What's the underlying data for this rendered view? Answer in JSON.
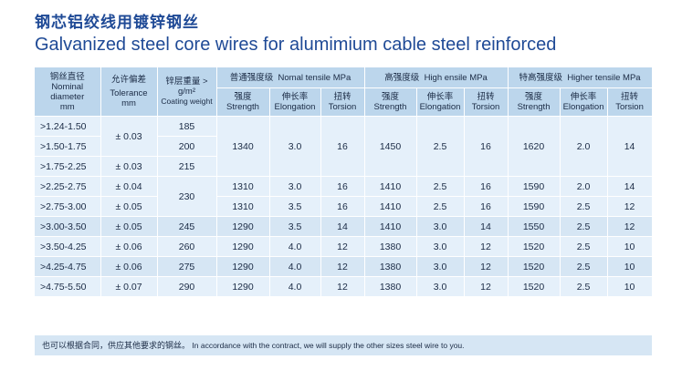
{
  "title": {
    "cn": "钢芯铝绞线用镀锌钢丝",
    "en": "Galvanized steel core wires for alumimium cable steel reinforced"
  },
  "header": {
    "diameter": {
      "cn": "钢丝直径",
      "en1": "Nominal",
      "en2": "diameter",
      "unit": "mm"
    },
    "tolerance": {
      "cn": "允许偏差",
      "en": "Tolerance",
      "unit": "mm"
    },
    "coating": {
      "cn": "锌层重量 >",
      "unit": "g/m²",
      "en": "Coating weight"
    },
    "groups": [
      {
        "cn": "普通强度级",
        "en": "Nomal tensile MPa"
      },
      {
        "cn": "高强度级",
        "en": "High ensile MPa"
      },
      {
        "cn": "特高强度级",
        "en": "Higher tensile MPa"
      }
    ],
    "sub": [
      {
        "cn": "强度",
        "en": "Strength"
      },
      {
        "cn": "伸长率",
        "en": "Elongation"
      },
      {
        "cn": "扭转",
        "en": "Torsion"
      }
    ]
  },
  "rows": [
    {
      "range": ">1.24-1.50",
      "coating": "185"
    },
    {
      "range": ">1.50-1.75",
      "coating": "200"
    },
    {
      "range": ">1.75-2.25",
      "tolerance": "± 0.03",
      "coating": "215"
    },
    {
      "range": ">2.25-2.75",
      "tolerance": "± 0.04",
      "s1": "1310",
      "e1": "3.0",
      "t1": "16",
      "s2": "1410",
      "e2": "2.5",
      "t2": "16",
      "s3": "1590",
      "e3": "2.0",
      "t3": "14"
    },
    {
      "range": ">2.75-3.00",
      "tolerance": "± 0.05",
      "coating": "230",
      "s1": "1310",
      "e1": "3.5",
      "t1": "16",
      "s2": "1410",
      "e2": "2.5",
      "t2": "16",
      "s3": "1590",
      "e3": "2.5",
      "t3": "12"
    },
    {
      "range": ">3.00-3.50",
      "tolerance": "± 0.05",
      "coating": "245",
      "s1": "1290",
      "e1": "3.5",
      "t1": "14",
      "s2": "1410",
      "e2": "3.0",
      "t2": "14",
      "s3": "1550",
      "e3": "2.5",
      "t3": "12"
    },
    {
      "range": ">3.50-4.25",
      "tolerance": "± 0.06",
      "coating": "260",
      "s1": "1290",
      "e1": "4.0",
      "t1": "12",
      "s2": "1380",
      "e2": "3.0",
      "t2": "12",
      "s3": "1520",
      "e3": "2.5",
      "t3": "10"
    },
    {
      "range": ">4.25-4.75",
      "tolerance": "± 0.06",
      "coating": "275",
      "s1": "1290",
      "e1": "4.0",
      "t1": "12",
      "s2": "1380",
      "e2": "3.0",
      "t2": "12",
      "s3": "1520",
      "e3": "2.5",
      "t3": "10"
    },
    {
      "range": ">4.75-5.50",
      "tolerance": "± 0.07",
      "coating": "290",
      "s1": "1290",
      "e1": "4.0",
      "t1": "12",
      "s2": "1380",
      "e2": "3.0",
      "t2": "12",
      "s3": "1520",
      "e3": "2.5",
      "t3": "10"
    }
  ],
  "merged": {
    "tolerance_12": "± 0.03",
    "s1": "1340",
    "e1": "3.0",
    "t1": "16",
    "s2": "1450",
    "e2": "2.5",
    "t2": "16",
    "s3": "1620",
    "e3": "2.0",
    "t3": "14"
  },
  "footer": {
    "cn": "也可以根据合同，供应其他要求的钢丝。",
    "en": "In accordance with the contract,  we will supply the other sizes steel wire to you."
  }
}
